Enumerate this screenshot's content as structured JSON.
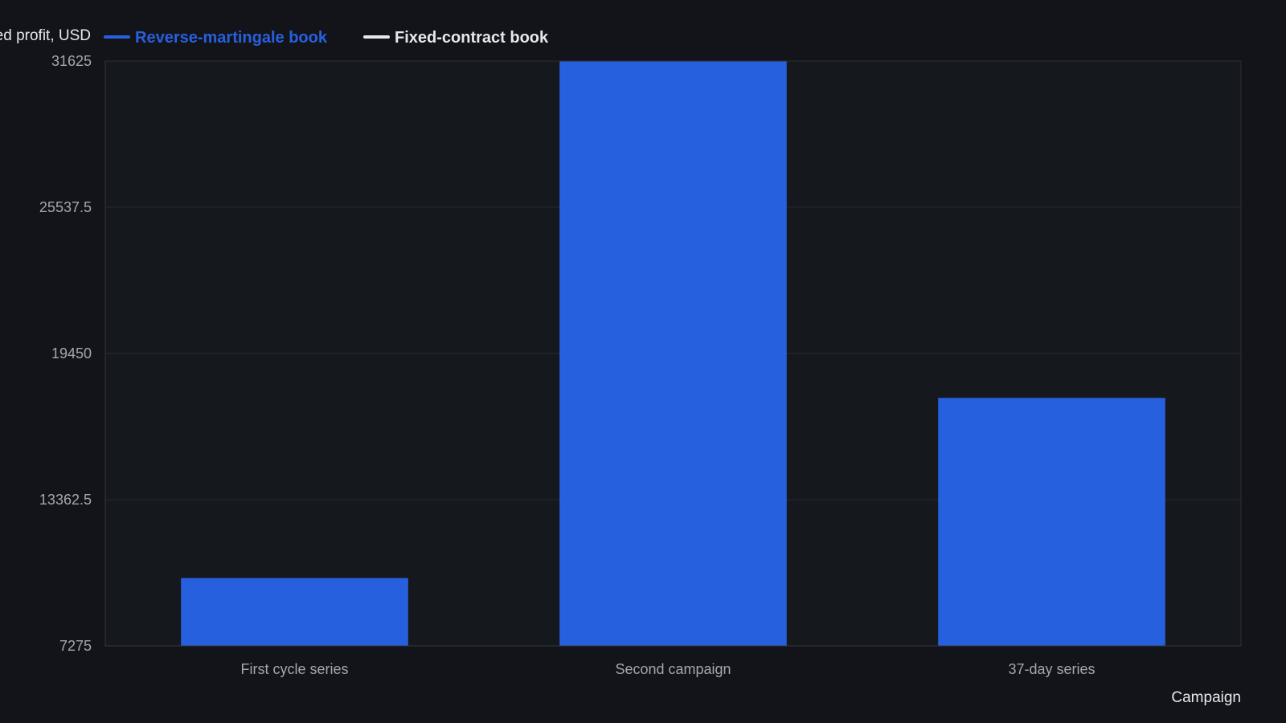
{
  "colors": {
    "background": "#121419",
    "plot_background": "#15181d",
    "grid": "#262a31",
    "axis": "#33373e",
    "series_primary": "#2760df",
    "series_secondary": "#e6e8ec",
    "tick_text": "#a2a7b0",
    "label_text": "#e6e8ec"
  },
  "chart_data": {
    "type": "bar",
    "title": "",
    "ylabel": "ed profit, USD",
    "xlabel": "Campaign",
    "categories": [
      "First cycle series",
      "Second campaign",
      "37-day series"
    ],
    "series": [
      {
        "name": "Reverse-martingale book",
        "values": [
          10100,
          31625,
          17600
        ]
      },
      {
        "name": "Fixed-contract book",
        "values": [
          null,
          null,
          null
        ]
      }
    ],
    "ylim": [
      7275,
      31625
    ],
    "yticks": [
      "31625",
      "25537.5",
      "19450",
      "13362.5",
      "7275"
    ],
    "grid": true,
    "legend_position": "top-left"
  }
}
